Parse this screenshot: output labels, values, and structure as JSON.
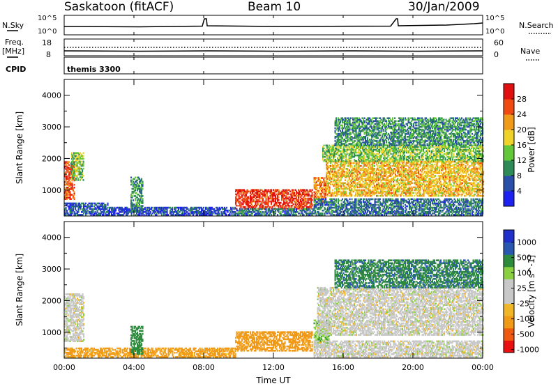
{
  "header": {
    "station": "Saskatoon (fitACF)",
    "beam": "Beam 10",
    "date": "30/Jan/2009"
  },
  "aux_panels": {
    "nsky_label": "N.Sky",
    "nsky_ticks": [
      "10^5",
      "10^0"
    ],
    "nsearch_label": "N.Search",
    "nsearch_ticks": [
      "10^5",
      "10^0"
    ],
    "freq_label_1": "Freq.",
    "freq_label_2": "[MHz]",
    "freq_ticks": [
      "18",
      "8"
    ],
    "nave_label": "Nave",
    "nave_ticks": [
      "60",
      "0"
    ],
    "cpid_label": "CPID",
    "cpid_text": "themis 3300"
  },
  "colors": {
    "power_scale": [
      "#1e22f0",
      "#2a4fa8",
      "#2e8b57",
      "#63c93a",
      "#f0d22a",
      "#f09a1a",
      "#f04a12",
      "#e01010"
    ],
    "velocity_scale": [
      "#e81010",
      "#f05a10",
      "#f09a18",
      "#f0b628",
      "#c8c8c8",
      "#c8c8c8",
      "#8ad040",
      "#2e8b3e",
      "#2a58b0",
      "#2030c8"
    ],
    "velocity_gray": "#c8c8c8"
  },
  "chart_data": [
    {
      "type": "heatmap",
      "title": "Power",
      "ylabel": "Slant Range [km]",
      "xlabel": "Time UT",
      "xlim": [
        0,
        24
      ],
      "ylim": [
        180,
        4500
      ],
      "xticks": [
        "00:00",
        "04:00",
        "08:00",
        "12:00",
        "16:00",
        "20:00",
        "00:00"
      ],
      "yticks": [
        "1000",
        "2000",
        "3000",
        "4000"
      ],
      "colorbar_label": "Power [dB]",
      "colorbar_ticks": [
        "4",
        "8",
        "12",
        "16",
        "20",
        "24",
        "28"
      ],
      "color_range": [
        0,
        32
      ],
      "regions": [
        {
          "t": [
            0.0,
            0.6
          ],
          "r": [
            700,
            1900
          ],
          "level": 26
        },
        {
          "t": [
            0.4,
            1.1
          ],
          "r": [
            1300,
            2200
          ],
          "level": 14
        },
        {
          "t": [
            0.0,
            2.5
          ],
          "r": [
            200,
            600
          ],
          "level": 6
        },
        {
          "t": [
            3.8,
            4.5
          ],
          "r": [
            300,
            1400
          ],
          "level": 10
        },
        {
          "t": [
            2.5,
            9.8
          ],
          "r": [
            200,
            450
          ],
          "level": 5
        },
        {
          "t": [
            9.8,
            14.2
          ],
          "r": [
            400,
            1000
          ],
          "level": 28
        },
        {
          "t": [
            9.8,
            14.3
          ],
          "r": [
            200,
            400
          ],
          "level": 8
        },
        {
          "t": [
            14.3,
            15.0
          ],
          "r": [
            600,
            1400
          ],
          "level": 24
        },
        {
          "t": [
            15.0,
            24.0
          ],
          "r": [
            800,
            1900
          ],
          "level": 20
        },
        {
          "t": [
            14.8,
            24.0
          ],
          "r": [
            1900,
            2400
          ],
          "level": 14
        },
        {
          "t": [
            15.5,
            24.0
          ],
          "r": [
            2400,
            3300
          ],
          "level": 10
        },
        {
          "t": [
            14.3,
            24.0
          ],
          "r": [
            200,
            700
          ],
          "level": 8
        }
      ]
    },
    {
      "type": "heatmap",
      "title": "Velocity",
      "ylabel": "Slant Range [km]",
      "xlabel": "Time UT",
      "xlim": [
        0,
        24
      ],
      "ylim": [
        180,
        4500
      ],
      "xticks": [
        "00:00",
        "04:00",
        "08:00",
        "12:00",
        "16:00",
        "20:00",
        "00:00"
      ],
      "yticks": [
        "1000",
        "2000",
        "3000",
        "4000"
      ],
      "colorbar_label": "Velocity [m s^-1]",
      "colorbar_ticks": [
        "1000",
        "500",
        "100",
        "25",
        "-25",
        "-100",
        "-500",
        "-1000"
      ],
      "regions": [
        {
          "t": [
            0.0,
            1.1
          ],
          "r": [
            700,
            2200
          ],
          "level": 0
        },
        {
          "t": [
            0.0,
            9.8
          ],
          "r": [
            200,
            500
          ],
          "level": -150
        },
        {
          "t": [
            3.8,
            4.5
          ],
          "r": [
            300,
            1200
          ],
          "level": 300
        },
        {
          "t": [
            9.8,
            14.2
          ],
          "r": [
            400,
            1000
          ],
          "level": -200
        },
        {
          "t": [
            14.3,
            15.2
          ],
          "r": [
            500,
            1400
          ],
          "level": 80
        },
        {
          "t": [
            14.5,
            24.0
          ],
          "r": [
            900,
            2400
          ],
          "level": 0
        },
        {
          "t": [
            15.5,
            24.0
          ],
          "r": [
            2400,
            3300
          ],
          "level": 400
        },
        {
          "t": [
            14.3,
            24.0
          ],
          "r": [
            200,
            700
          ],
          "level": 0
        }
      ]
    }
  ]
}
